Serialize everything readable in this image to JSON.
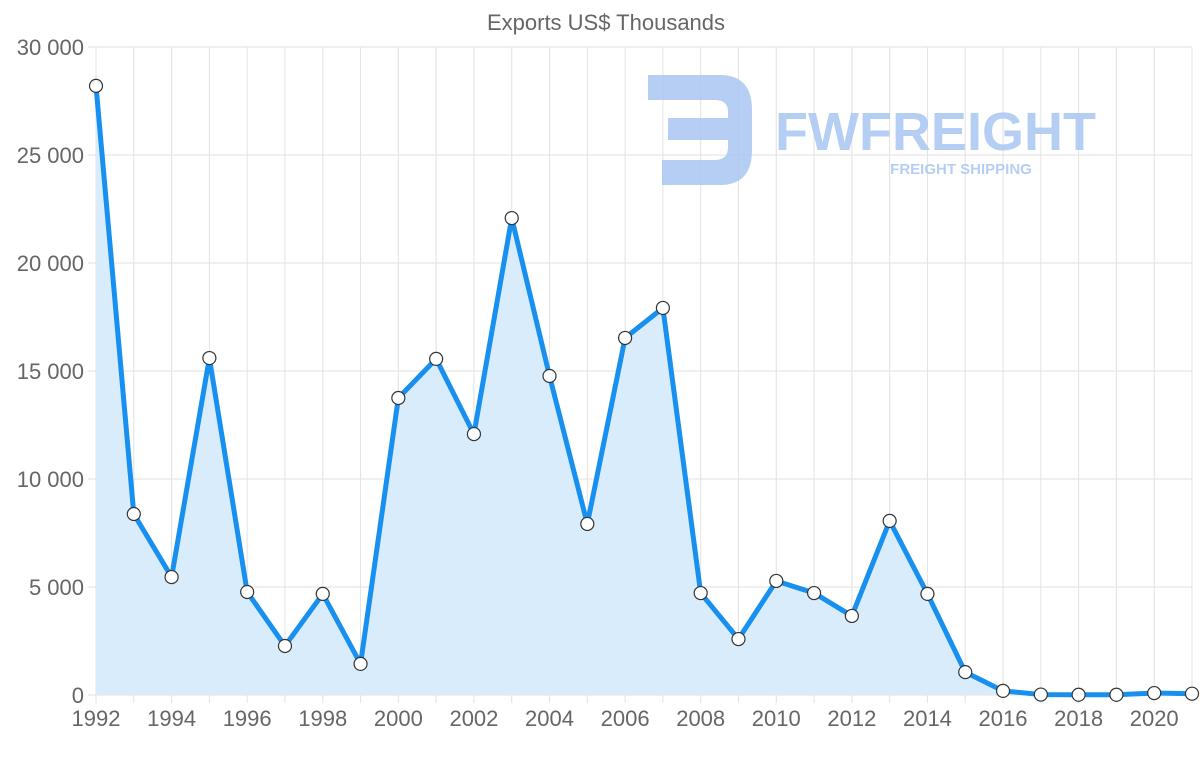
{
  "chart_data": {
    "type": "area",
    "title": "Exports US$ Thousands",
    "xlabel": "",
    "ylabel": "",
    "ylim": [
      0,
      30000
    ],
    "xlim": [
      1992,
      2021
    ],
    "grid": true,
    "y_ticks": [
      0,
      5000,
      10000,
      15000,
      20000,
      25000,
      30000
    ],
    "y_tick_labels": [
      "0",
      "5 000",
      "10 000",
      "15 000",
      "20 000",
      "25 000",
      "30 000"
    ],
    "x_tick_labels": [
      "1992",
      "1994",
      "1996",
      "1998",
      "2000",
      "2002",
      "2004",
      "2006",
      "2008",
      "2010",
      "2012",
      "2014",
      "2016",
      "2018",
      "2020"
    ],
    "series": [
      {
        "name": "Exports",
        "color": "#1890f0",
        "fill": "#d9ecfc",
        "x": [
          1992,
          1993,
          1994,
          1995,
          1996,
          1997,
          1998,
          1999,
          2000,
          2001,
          2002,
          2003,
          2004,
          2005,
          2006,
          2007,
          2008,
          2009,
          2010,
          2011,
          2012,
          2013,
          2014,
          2015,
          2016,
          2017,
          2018,
          2019,
          2020,
          2021
        ],
        "values": [
          28200,
          8380,
          5460,
          15600,
          4770,
          2270,
          4680,
          1440,
          13750,
          15560,
          12080,
          22080,
          14770,
          7920,
          16530,
          17920,
          4720,
          2590,
          5280,
          4720,
          3660,
          8060,
          4680,
          1060,
          190,
          20,
          10,
          10,
          90,
          60
        ]
      }
    ]
  },
  "watermark": {
    "brand": "FWFREIGHT",
    "tagline": "FREIGHT SHIPPING",
    "color": "#a9c6f2"
  }
}
